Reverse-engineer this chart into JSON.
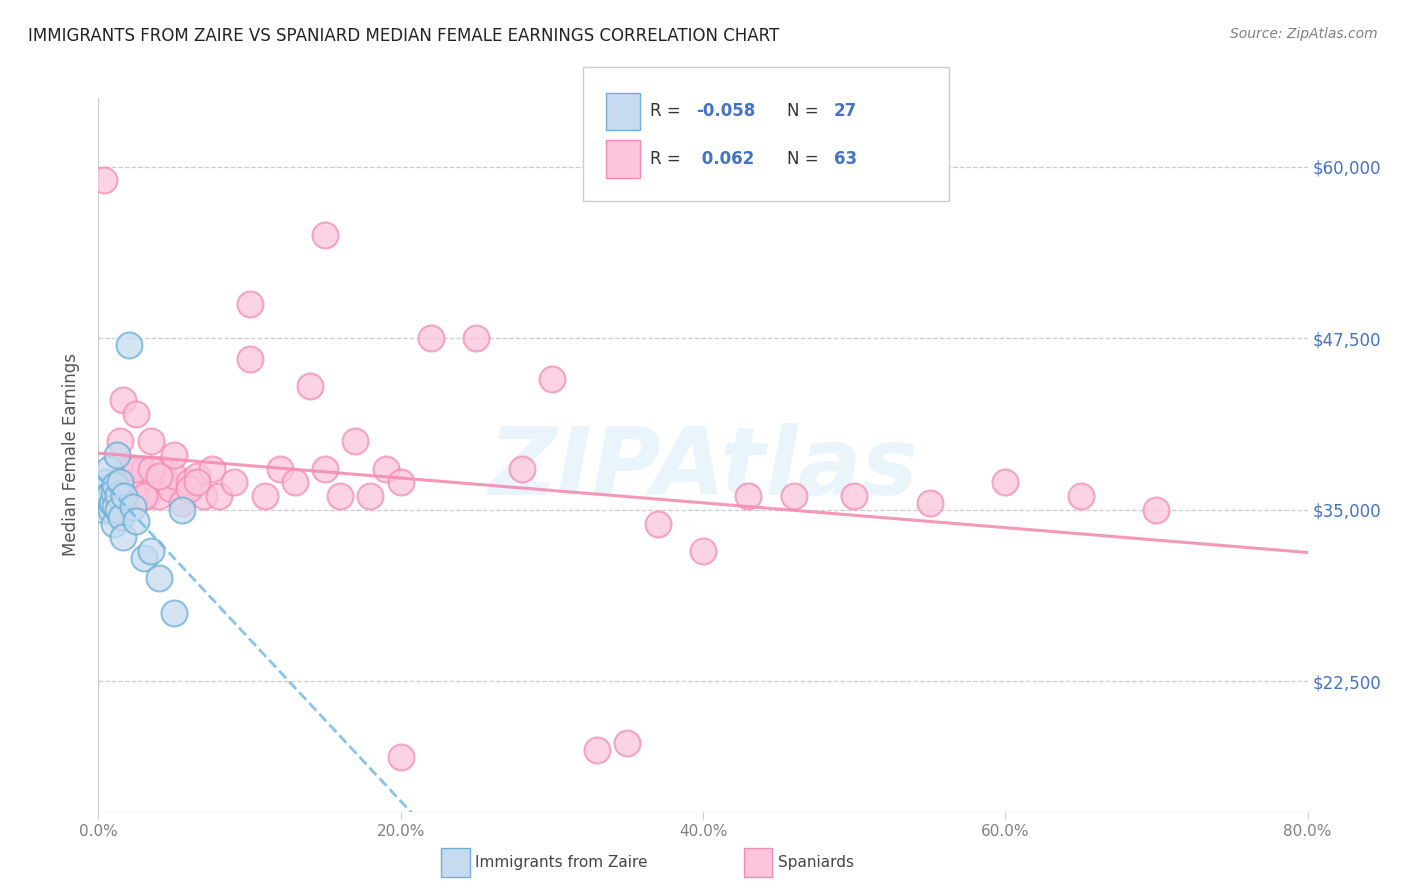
{
  "title": "IMMIGRANTS FROM ZAIRE VS SPANIARD MEDIAN FEMALE EARNINGS CORRELATION CHART",
  "source": "Source: ZipAtlas.com",
  "ylabel": "Median Female Earnings",
  "yticks": [
    22500,
    35000,
    47500,
    60000
  ],
  "ytick_labels": [
    "$22,500",
    "$35,000",
    "$47,500",
    "$60,000"
  ],
  "xtick_labels": [
    "0.0%",
    "20.0%",
    "40.0%",
    "60.0%",
    "80.0%"
  ],
  "xlim": [
    0.0,
    0.8
  ],
  "ylim": [
    13000,
    65000
  ],
  "watermark": "ZIPAtlas",
  "blue_edge": "#6baed6",
  "blue_face": "#c6dbef",
  "pink_edge": "#f48cb1",
  "pink_face": "#fcc5dc",
  "trend_blue": "#74b9e8",
  "trend_pink": "#f48cb1",
  "zaire_x": [
    0.003,
    0.004,
    0.005,
    0.006,
    0.007,
    0.007,
    0.008,
    0.009,
    0.01,
    0.01,
    0.011,
    0.011,
    0.012,
    0.013,
    0.013,
    0.014,
    0.015,
    0.016,
    0.017,
    0.02,
    0.023,
    0.025,
    0.03,
    0.035,
    0.04,
    0.05,
    0.055
  ],
  "zaire_y": [
    36500,
    35000,
    37000,
    36000,
    38000,
    36000,
    35000,
    35500,
    34000,
    36200,
    35300,
    36800,
    39000,
    36100,
    35000,
    37000,
    34500,
    33000,
    36000,
    47000,
    35200,
    34200,
    31500,
    32000,
    30000,
    27500,
    35000
  ],
  "spaniard_x": [
    0.004,
    0.008,
    0.01,
    0.012,
    0.014,
    0.016,
    0.018,
    0.02,
    0.022,
    0.025,
    0.027,
    0.03,
    0.032,
    0.035,
    0.038,
    0.04,
    0.042,
    0.045,
    0.048,
    0.05,
    0.055,
    0.06,
    0.065,
    0.07,
    0.075,
    0.08,
    0.09,
    0.1,
    0.11,
    0.12,
    0.13,
    0.14,
    0.15,
    0.16,
    0.17,
    0.18,
    0.19,
    0.2,
    0.22,
    0.25,
    0.28,
    0.3,
    0.33,
    0.35,
    0.37,
    0.4,
    0.43,
    0.46,
    0.5,
    0.55,
    0.6,
    0.65,
    0.7,
    0.025,
    0.03,
    0.035,
    0.04,
    0.1,
    0.15,
    0.2,
    0.05,
    0.06,
    0.065
  ],
  "spaniard_y": [
    59000,
    36000,
    35500,
    37000,
    40000,
    43000,
    38000,
    37000,
    38000,
    42000,
    37000,
    38000,
    36000,
    40000,
    37000,
    36000,
    38000,
    37000,
    36500,
    37500,
    35500,
    37000,
    37500,
    36000,
    38000,
    36000,
    37000,
    46000,
    36000,
    38000,
    37000,
    44000,
    38000,
    36000,
    40000,
    36000,
    38000,
    17000,
    47500,
    47500,
    38000,
    44500,
    17500,
    18000,
    34000,
    32000,
    36000,
    36000,
    36000,
    35500,
    37000,
    36000,
    35000,
    38000,
    36000,
    38000,
    37500,
    50000,
    55000,
    37000,
    39000,
    36500,
    37000
  ]
}
